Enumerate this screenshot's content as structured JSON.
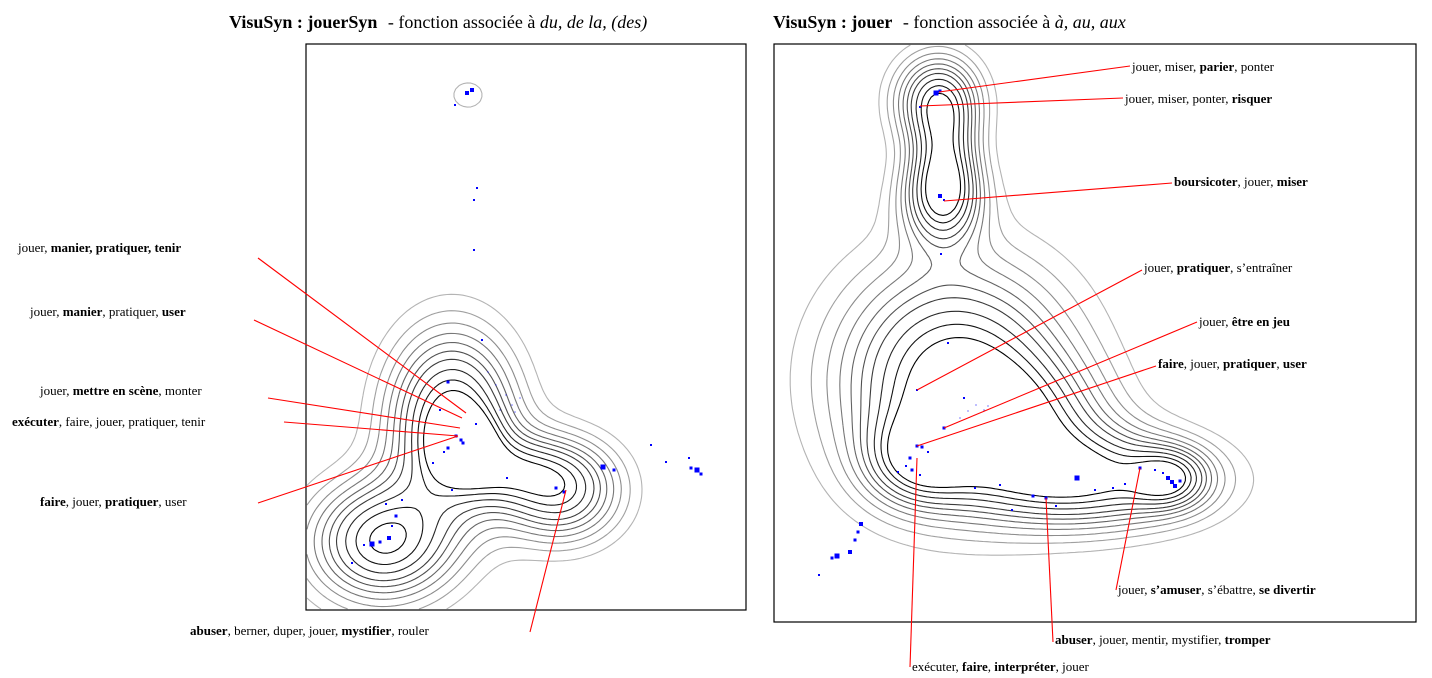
{
  "panels": [
    {
      "title_main": "VisuSyn : jouerSyn",
      "title_func": "- fonction associée à",
      "title_args": "du, de la, (des)",
      "labels": [
        {
          "parts": [
            [
              "jouer, ",
              false
            ],
            [
              "manier, pratiquer, tenir",
              true
            ]
          ]
        },
        {
          "parts": [
            [
              "jouer, ",
              false
            ],
            [
              "manier",
              true
            ],
            [
              ", pratiquer, ",
              false
            ],
            [
              "user",
              true
            ]
          ]
        },
        {
          "parts": [
            [
              "jouer, ",
              false
            ],
            [
              "mettre en scène",
              true
            ],
            [
              ", monter",
              false
            ]
          ]
        },
        {
          "parts": [
            [
              "exécuter",
              true
            ],
            [
              ", faire, jouer, pratiquer, tenir",
              false
            ]
          ]
        },
        {
          "parts": [
            [
              "faire",
              true
            ],
            [
              ", jouer, ",
              false
            ],
            [
              "pratiquer",
              true
            ],
            [
              ", user",
              false
            ]
          ]
        },
        {
          "parts": [
            [
              "abuser",
              true
            ],
            [
              ", berner, duper, jouer, ",
              false
            ],
            [
              "mystifier",
              true
            ],
            [
              ", rouler",
              false
            ]
          ]
        }
      ]
    },
    {
      "title_main": "VisuSyn : jouer",
      "title_func": "- fonction associée à",
      "title_args": "à, au, aux",
      "labels": [
        {
          "parts": [
            [
              "jouer, miser, ",
              false
            ],
            [
              "parier",
              true
            ],
            [
              ", ponter",
              false
            ]
          ]
        },
        {
          "parts": [
            [
              "jouer, miser, ponter, ",
              false
            ],
            [
              "risquer",
              true
            ]
          ]
        },
        {
          "parts": [
            [
              "boursicoter",
              true
            ],
            [
              ", jouer, ",
              false
            ],
            [
              "miser",
              true
            ]
          ]
        },
        {
          "parts": [
            [
              "jouer, ",
              false
            ],
            [
              "pratiquer",
              true
            ],
            [
              ", s’entraîner",
              false
            ]
          ]
        },
        {
          "parts": [
            [
              "jouer, ",
              false
            ],
            [
              "être en jeu",
              true
            ]
          ]
        },
        {
          "parts": [
            [
              "faire",
              true
            ],
            [
              ", jouer, ",
              false
            ],
            [
              "pratiquer",
              true
            ],
            [
              ", ",
              false
            ],
            [
              "user",
              true
            ]
          ]
        },
        {
          "parts": [
            [
              "jouer, ",
              false
            ],
            [
              "s’amuser",
              true
            ],
            [
              ", s’ébattre, ",
              false
            ],
            [
              "se divertir",
              true
            ]
          ]
        },
        {
          "parts": [
            [
              "abuser",
              true
            ],
            [
              ", jouer, mentir, mystifier, ",
              false
            ],
            [
              "tromper",
              true
            ]
          ]
        },
        {
          "parts": [
            [
              "exécuter, ",
              false
            ],
            [
              "faire",
              true
            ],
            [
              ", ",
              false
            ],
            [
              "interpréter",
              true
            ],
            [
              ", jouer",
              false
            ]
          ]
        }
      ]
    }
  ],
  "colors": {
    "contour_dark": "#000000",
    "contour_light": "#b4b4b4",
    "point": "#0000ff",
    "leader": "#ff0000",
    "frame": "#000000"
  }
}
